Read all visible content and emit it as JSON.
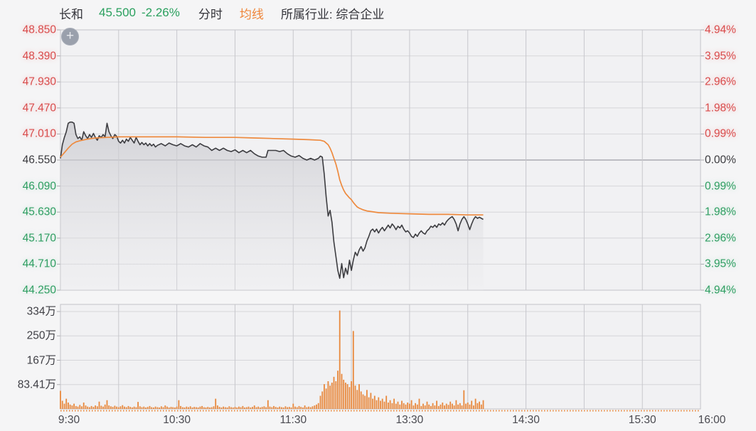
{
  "header": {
    "stock_name": "长和",
    "price": "45.500",
    "change_percent": "-2.26%",
    "chart_type_label": "分时",
    "avg_line_label": "均线",
    "industry_label": "所属行业: 综合企业"
  },
  "zoom_button": {
    "symbol": "+"
  },
  "colors": {
    "up_red": "#d94c4c",
    "down_green": "#2f9e62",
    "neutral_text": "#3a3a3e",
    "price_line": "#3d3d41",
    "avg_line": "#ee8a3e",
    "volume_bar": "#e8883c",
    "grid": "#d6d6da",
    "grid_vertical": "#c7c7cc",
    "prev_close_line": "#bcbcc2",
    "panel_bg": "#f1f1f3",
    "page_bg": "#f5f5f6"
  },
  "chart_data": {
    "type": "line",
    "description": "intraday minute price chart with average line and volume bars",
    "x_axis": {
      "ticks": [
        "9:30",
        "10:30",
        "11:30",
        "13:30",
        "14:30",
        "15:30",
        "16:00"
      ],
      "tick_minutes": [
        0,
        60,
        120,
        180,
        240,
        300,
        330
      ],
      "gridline_minutes": [
        30,
        60,
        90,
        120,
        150,
        180,
        210,
        240,
        270,
        300
      ],
      "session_minutes": 330
    },
    "price_axis": {
      "max": 48.85,
      "min": 44.25,
      "step": 0.46,
      "prev_close": 46.55,
      "left_ticks": [
        "48.850",
        "48.390",
        "47.930",
        "47.470",
        "47.010",
        "46.550",
        "46.090",
        "45.630",
        "45.170",
        "44.710",
        "44.250"
      ],
      "right_ticks": [
        "4.94%",
        "3.95%",
        "2.96%",
        "1.98%",
        "0.99%",
        "0.00%",
        "0.99%",
        "1.98%",
        "2.96%",
        "3.95%",
        "4.94%"
      ]
    },
    "volume_axis": {
      "unit": "万",
      "ticks": [
        "334万",
        "250万",
        "167万",
        "83.41万"
      ],
      "tick_values": [
        333.64,
        250.23,
        166.82,
        83.41
      ]
    },
    "series": [
      {
        "name": "price",
        "points": [
          [
            0,
            46.58
          ],
          [
            1,
            46.82
          ],
          [
            2,
            46.95
          ],
          [
            3,
            47.05
          ],
          [
            4,
            47.2
          ],
          [
            5,
            47.22
          ],
          [
            6,
            47.22
          ],
          [
            7,
            47.2
          ],
          [
            8,
            47.0
          ],
          [
            9,
            46.93
          ],
          [
            10,
            46.96
          ],
          [
            11,
            46.9
          ],
          [
            12,
            47.05
          ],
          [
            13,
            46.98
          ],
          [
            14,
            46.93
          ],
          [
            15,
            47.0
          ],
          [
            16,
            46.95
          ],
          [
            17,
            47.02
          ],
          [
            18,
            46.95
          ],
          [
            19,
            46.9
          ],
          [
            20,
            46.98
          ],
          [
            21,
            46.95
          ],
          [
            22,
            47.0
          ],
          [
            23,
            46.96
          ],
          [
            24,
            47.2
          ],
          [
            25,
            47.05
          ],
          [
            26,
            46.98
          ],
          [
            27,
            46.93
          ],
          [
            28,
            47.0
          ],
          [
            29,
            46.97
          ],
          [
            30,
            46.88
          ],
          [
            31,
            46.85
          ],
          [
            32,
            46.9
          ],
          [
            33,
            46.85
          ],
          [
            34,
            46.92
          ],
          [
            35,
            46.88
          ],
          [
            36,
            46.95
          ],
          [
            37,
            46.9
          ],
          [
            38,
            46.85
          ],
          [
            39,
            46.95
          ],
          [
            40,
            46.88
          ],
          [
            41,
            46.82
          ],
          [
            42,
            46.86
          ],
          [
            43,
            46.82
          ],
          [
            44,
            46.85
          ],
          [
            45,
            46.8
          ],
          [
            46,
            46.84
          ],
          [
            47,
            46.8
          ],
          [
            48,
            46.83
          ],
          [
            49,
            46.78
          ],
          [
            50,
            46.81
          ],
          [
            52,
            46.84
          ],
          [
            54,
            46.8
          ],
          [
            56,
            46.85
          ],
          [
            58,
            46.82
          ],
          [
            60,
            46.8
          ],
          [
            62,
            46.84
          ],
          [
            64,
            46.8
          ],
          [
            66,
            46.78
          ],
          [
            68,
            46.82
          ],
          [
            70,
            46.78
          ],
          [
            72,
            46.84
          ],
          [
            74,
            46.8
          ],
          [
            76,
            46.78
          ],
          [
            78,
            46.72
          ],
          [
            80,
            46.76
          ],
          [
            82,
            46.72
          ],
          [
            84,
            46.76
          ],
          [
            86,
            46.72
          ],
          [
            88,
            46.7
          ],
          [
            90,
            46.73
          ],
          [
            92,
            46.68
          ],
          [
            94,
            46.72
          ],
          [
            96,
            46.68
          ],
          [
            98,
            46.72
          ],
          [
            100,
            46.66
          ],
          [
            102,
            46.62
          ],
          [
            104,
            46.6
          ],
          [
            106,
            46.6
          ],
          [
            107,
            46.72
          ],
          [
            109,
            46.72
          ],
          [
            111,
            46.72
          ],
          [
            113,
            46.7
          ],
          [
            115,
            46.72
          ],
          [
            117,
            46.66
          ],
          [
            119,
            46.62
          ],
          [
            121,
            46.6
          ],
          [
            123,
            46.63
          ],
          [
            125,
            46.58
          ],
          [
            127,
            46.55
          ],
          [
            129,
            46.58
          ],
          [
            131,
            46.55
          ],
          [
            133,
            46.58
          ],
          [
            134,
            46.62
          ],
          [
            135,
            46.6
          ],
          [
            136,
            46.3
          ],
          [
            137,
            45.9
          ],
          [
            138,
            45.56
          ],
          [
            139,
            45.66
          ],
          [
            140,
            45.45
          ],
          [
            141,
            45.1
          ],
          [
            142,
            44.85
          ],
          [
            143,
            44.6
          ],
          [
            144,
            44.46
          ],
          [
            145,
            44.72
          ],
          [
            146,
            44.47
          ],
          [
            147,
            44.64
          ],
          [
            148,
            44.53
          ],
          [
            149,
            44.78
          ],
          [
            150,
            44.6
          ],
          [
            151,
            44.78
          ],
          [
            152,
            44.92
          ],
          [
            153,
            44.86
          ],
          [
            154,
            44.96
          ],
          [
            155,
            45.02
          ],
          [
            156,
            44.94
          ],
          [
            157,
            45.0
          ],
          [
            158,
            45.12
          ],
          [
            159,
            45.2
          ],
          [
            160,
            45.3
          ],
          [
            161,
            45.33
          ],
          [
            162,
            45.28
          ],
          [
            163,
            45.33
          ],
          [
            164,
            45.26
          ],
          [
            165,
            45.32
          ],
          [
            166,
            45.36
          ],
          [
            167,
            45.3
          ],
          [
            168,
            45.35
          ],
          [
            169,
            45.4
          ],
          [
            170,
            45.35
          ],
          [
            171,
            45.42
          ],
          [
            172,
            45.38
          ],
          [
            173,
            45.32
          ],
          [
            174,
            45.38
          ],
          [
            175,
            45.35
          ],
          [
            176,
            45.4
          ],
          [
            177,
            45.33
          ],
          [
            178,
            45.28
          ],
          [
            179,
            45.3
          ],
          [
            180,
            45.26
          ],
          [
            181,
            45.2
          ],
          [
            182,
            45.18
          ],
          [
            183,
            45.24
          ],
          [
            184,
            45.2
          ],
          [
            185,
            45.26
          ],
          [
            186,
            45.3
          ],
          [
            187,
            45.26
          ],
          [
            188,
            45.24
          ],
          [
            189,
            45.3
          ],
          [
            190,
            45.33
          ],
          [
            191,
            45.38
          ],
          [
            192,
            45.36
          ],
          [
            193,
            45.4
          ],
          [
            194,
            45.36
          ],
          [
            195,
            45.42
          ],
          [
            196,
            45.4
          ],
          [
            197,
            45.44
          ],
          [
            198,
            45.4
          ],
          [
            199,
            45.46
          ],
          [
            200,
            45.5
          ],
          [
            201,
            45.53
          ],
          [
            202,
            45.55
          ],
          [
            203,
            45.5
          ],
          [
            204,
            45.42
          ],
          [
            205,
            45.3
          ],
          [
            206,
            45.42
          ],
          [
            207,
            45.5
          ],
          [
            208,
            45.55
          ],
          [
            209,
            45.5
          ],
          [
            210,
            45.42
          ],
          [
            211,
            45.32
          ],
          [
            212,
            45.42
          ],
          [
            213,
            45.5
          ],
          [
            214,
            45.55
          ],
          [
            215,
            45.52
          ],
          [
            216,
            45.54
          ],
          [
            217,
            45.52
          ],
          [
            218,
            45.5
          ]
        ]
      },
      {
        "name": "avg",
        "points": [
          [
            0,
            46.6
          ],
          [
            2,
            46.68
          ],
          [
            4,
            46.76
          ],
          [
            6,
            46.83
          ],
          [
            8,
            46.87
          ],
          [
            10,
            46.89
          ],
          [
            14,
            46.92
          ],
          [
            18,
            46.94
          ],
          [
            24,
            46.95
          ],
          [
            30,
            46.96
          ],
          [
            45,
            46.96
          ],
          [
            60,
            46.96
          ],
          [
            75,
            46.95
          ],
          [
            90,
            46.95
          ],
          [
            100,
            46.94
          ],
          [
            110,
            46.93
          ],
          [
            120,
            46.92
          ],
          [
            128,
            46.91
          ],
          [
            134,
            46.9
          ],
          [
            136,
            46.88
          ],
          [
            138,
            46.82
          ],
          [
            139,
            46.76
          ],
          [
            140,
            46.68
          ],
          [
            141,
            46.58
          ],
          [
            142,
            46.48
          ],
          [
            143,
            46.35
          ],
          [
            144,
            46.2
          ],
          [
            145,
            46.1
          ],
          [
            146,
            46.02
          ],
          [
            147,
            45.96
          ],
          [
            148,
            45.92
          ],
          [
            149,
            45.88
          ],
          [
            150,
            45.85
          ],
          [
            151,
            45.8
          ],
          [
            152,
            45.76
          ],
          [
            153,
            45.72
          ],
          [
            154,
            45.7
          ],
          [
            156,
            45.67
          ],
          [
            158,
            45.65
          ],
          [
            160,
            45.64
          ],
          [
            164,
            45.62
          ],
          [
            170,
            45.61
          ],
          [
            180,
            45.6
          ],
          [
            190,
            45.59
          ],
          [
            200,
            45.59
          ],
          [
            210,
            45.58
          ],
          [
            218,
            45.58
          ]
        ]
      }
    ],
    "volume": {
      "values": [
        62,
        28,
        18,
        35,
        22,
        15,
        12,
        18,
        10,
        8,
        14,
        9,
        22,
        12,
        8,
        6,
        10,
        7,
        12,
        9,
        25,
        11,
        8,
        15,
        30,
        12,
        9,
        7,
        11,
        8,
        6,
        9,
        13,
        8,
        6,
        10,
        7,
        5,
        8,
        6,
        24,
        9,
        6,
        8,
        5,
        7,
        10,
        6,
        5,
        8,
        6,
        5,
        9,
        6,
        12,
        8,
        5,
        7,
        6,
        5,
        8,
        30,
        10,
        6,
        5,
        8,
        6,
        9,
        5,
        7,
        6,
        5,
        8,
        10,
        6,
        5,
        7,
        5,
        6,
        9,
        35,
        12,
        7,
        5,
        8,
        6,
        5,
        9,
        6,
        5,
        7,
        5,
        8,
        6,
        10,
        5,
        6,
        8,
        5,
        7,
        12,
        6,
        8,
        5,
        7,
        9,
        6,
        30,
        8,
        6,
        10,
        7,
        5,
        8,
        6,
        5,
        9,
        6,
        7,
        5,
        18,
        8,
        6,
        10,
        7,
        5,
        12,
        6,
        8,
        6,
        9,
        12,
        15,
        20,
        45,
        60,
        85,
        70,
        95,
        80,
        90,
        110,
        95,
        131,
        337,
        120,
        100,
        90,
        85,
        75,
        95,
        267,
        80,
        65,
        85,
        60,
        50,
        45,
        65,
        40,
        55,
        35,
        45,
        30,
        40,
        28,
        35,
        25,
        45,
        22,
        30,
        20,
        35,
        18,
        25,
        15,
        28,
        20,
        15,
        22,
        18,
        30,
        12,
        20,
        15,
        35,
        10,
        18,
        12,
        25,
        15,
        10,
        20,
        12,
        28,
        10,
        15,
        22,
        12,
        18,
        14,
        25,
        18,
        12,
        30,
        15,
        20,
        12,
        64,
        18,
        22,
        15,
        28,
        12,
        35,
        20,
        25,
        15,
        30
      ]
    }
  }
}
